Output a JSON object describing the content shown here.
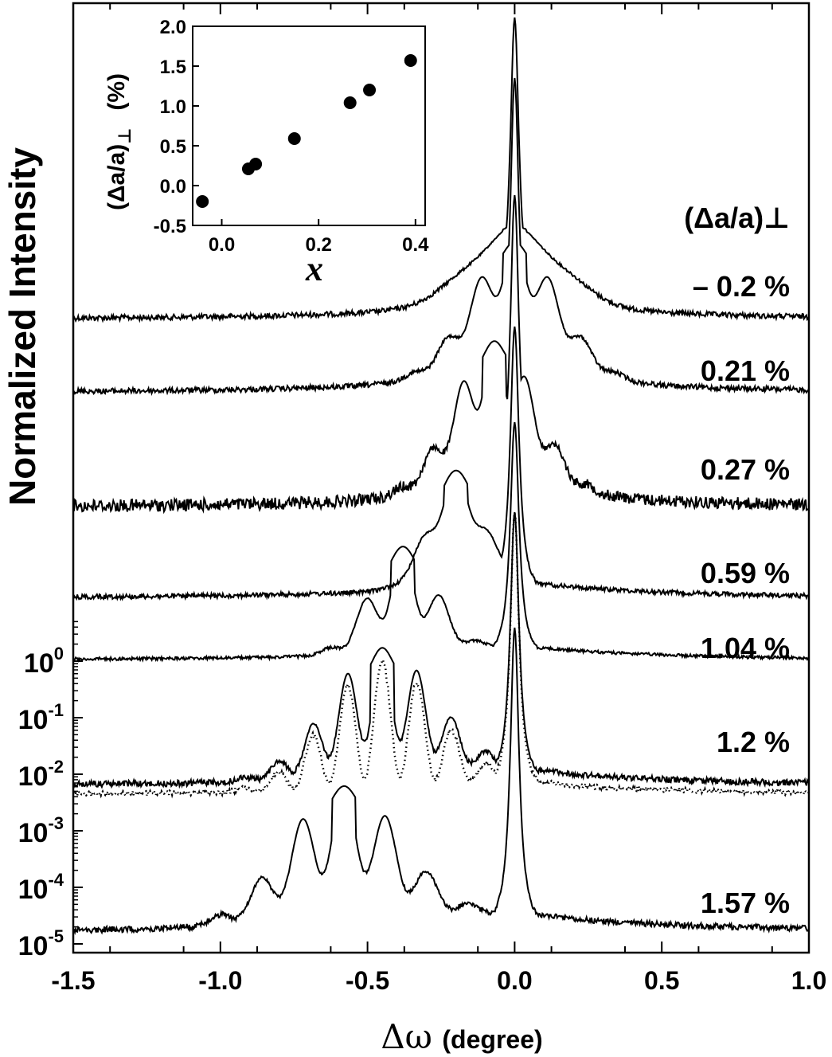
{
  "chart_data": [
    {
      "type": "line",
      "title": "",
      "xlabel_symbol": "Δω",
      "xlabel_unit": "(degree)",
      "ylabel": "Normalized Intensity",
      "xlim": [
        -1.5,
        1.0
      ],
      "x_ticks": [
        "-1.5",
        "-1.0",
        "-0.5",
        "0.0",
        "0.5",
        "1.0"
      ],
      "y_scale": "log",
      "y_tick_labels": [
        {
          "base": "10",
          "exp": "0"
        },
        {
          "base": "10",
          "exp": "-1"
        },
        {
          "base": "10",
          "exp": "-2"
        },
        {
          "base": "10",
          "exp": "-3"
        },
        {
          "base": "10",
          "exp": "-4"
        },
        {
          "base": "10",
          "exp": "-5"
        }
      ],
      "legend_header": "(Δa/a)⊥",
      "series": [
        {
          "name": "-0.2 %",
          "label": "– 0.2 %",
          "peak": 0.0,
          "fringe_period": 0.25,
          "envelope_center": 0.0,
          "envelope_width": 0.22,
          "envelope_height": 0.25,
          "fringe_depth": 0.12
        },
        {
          "name": "0.21 %",
          "label": "0.21 %",
          "peak": 0.0,
          "fringe_period": 0.12,
          "envelope_center": 0.0,
          "envelope_width": 0.22,
          "envelope_height": 0.42,
          "fringe_depth": 0.35
        },
        {
          "name": "0.27 %",
          "label": "0.27 %",
          "peak": 0.0,
          "fringe_period": 0.11,
          "envelope_center": -0.07,
          "envelope_width": 0.2,
          "envelope_height": 0.48,
          "fringe_depth": 0.4
        },
        {
          "name": "0.59 %",
          "label": "0.59 %",
          "peak": 0.0,
          "fringe_period": 0.13,
          "envelope_center": -0.2,
          "envelope_width": 0.13,
          "envelope_height": 0.43,
          "fringe_depth": 0.3
        },
        {
          "name": "1.04 %",
          "label": "1.04 %",
          "peak": 0.0,
          "fringe_period": 0.135,
          "envelope_center": -0.38,
          "envelope_width": 0.16,
          "envelope_height": 0.45,
          "fringe_depth": 0.6
        },
        {
          "name": "1.2 %",
          "label": "1.2 %",
          "peak": 0.0,
          "fringe_period": 0.12,
          "envelope_center": -0.45,
          "envelope_width": 0.26,
          "envelope_height": 0.48,
          "fringe_depth": 0.7,
          "simulated_dotted": true
        },
        {
          "name": "1.57 %",
          "label": "1.57 %",
          "peak": 0.0,
          "fringe_period": 0.145,
          "envelope_center": -0.58,
          "envelope_width": 0.28,
          "envelope_height": 0.46,
          "fringe_depth": 0.6
        }
      ]
    },
    {
      "type": "scatter",
      "title": "inset",
      "xlabel": "x",
      "ylabel_main": "(Δa/a)",
      "ylabel_sub": "⊥",
      "ylabel_unit": "(%)",
      "xlim": [
        -0.06,
        0.42
      ],
      "ylim": [
        -0.5,
        2.0
      ],
      "x_ticks": [
        "0.0",
        "0.2",
        "0.4"
      ],
      "y_ticks": [
        "-0.5",
        "0.0",
        "0.5",
        "1.0",
        "1.5",
        "2.0"
      ],
      "x": [
        -0.04,
        0.055,
        0.07,
        0.15,
        0.265,
        0.305,
        0.39
      ],
      "y": [
        -0.2,
        0.21,
        0.27,
        0.59,
        1.04,
        1.2,
        1.57
      ]
    }
  ]
}
